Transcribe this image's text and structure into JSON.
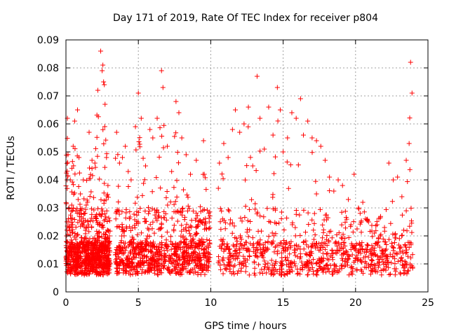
{
  "chart_data": {
    "type": "scatter",
    "title": "Day 171 of 2019, Rate Of TEC Index for receiver p804",
    "xlabel": "GPS time / hours",
    "ylabel": "ROTI / TECUs",
    "xlim": [
      0,
      25
    ],
    "ylim": [
      0,
      0.09
    ],
    "xticks": [
      "0",
      "5",
      "10",
      "15",
      "20",
      "25"
    ],
    "yticks": [
      "0",
      "0.01",
      "0.02",
      "0.03",
      "0.04",
      "0.05",
      "0.06",
      "0.07",
      "0.08",
      "0.09"
    ],
    "grid": true,
    "marker": "+",
    "color": "#ff0000",
    "series": [
      {
        "name": "ROTI",
        "x": [
          0.1,
          0.2,
          0.3,
          0.4,
          0.5,
          0.6,
          0.8,
          0.9,
          1.0,
          1.2,
          1.4,
          1.6,
          1.8,
          2.0,
          2.2,
          2.4,
          2.5,
          2.55,
          2.6,
          2.65,
          2.7,
          2.8,
          2.9,
          3.0,
          3.5,
          3.7,
          3.9,
          4.1,
          4.3,
          4.5,
          4.8,
          5.0,
          5.2,
          5.5,
          5.8,
          6.0,
          6.3,
          6.6,
          6.7,
          7.0,
          7.3,
          7.6,
          7.8,
          8.0,
          8.3,
          8.6,
          9.0,
          9.5,
          9.9,
          10.6,
          10.9,
          11.2,
          11.5,
          11.7,
          12.0,
          12.3,
          12.6,
          12.9,
          13.2,
          13.4,
          13.7,
          14.0,
          14.3,
          14.6,
          14.8,
          15.0,
          15.3,
          15.6,
          15.9,
          16.2,
          16.4,
          16.7,
          17.0,
          17.3,
          17.6,
          17.9,
          18.2,
          18.5,
          18.8,
          19.1,
          19.5,
          19.9,
          20.2,
          20.5,
          20.9,
          21.3,
          21.7,
          22.0,
          22.3,
          22.6,
          22.9,
          23.2,
          23.5,
          23.7,
          23.8,
          23.9
        ],
        "y": [
          0.062,
          0.025,
          0.04,
          0.031,
          0.052,
          0.061,
          0.065,
          0.048,
          0.035,
          0.04,
          0.031,
          0.057,
          0.047,
          0.046,
          0.072,
          0.086,
          0.079,
          0.081,
          0.075,
          0.074,
          0.067,
          0.048,
          0.038,
          0.02,
          0.057,
          0.046,
          0.048,
          0.052,
          0.043,
          0.04,
          0.059,
          0.071,
          0.062,
          0.045,
          0.058,
          0.055,
          0.062,
          0.079,
          0.073,
          0.052,
          0.043,
          0.068,
          0.064,
          0.055,
          0.049,
          0.042,
          0.047,
          0.054,
          0.025,
          0.046,
          0.053,
          0.048,
          0.058,
          0.065,
          0.057,
          0.06,
          0.066,
          0.045,
          0.077,
          0.062,
          0.051,
          0.066,
          0.056,
          0.073,
          0.065,
          0.05,
          0.055,
          0.064,
          0.062,
          0.069,
          0.056,
          0.061,
          0.055,
          0.054,
          0.052,
          0.047,
          0.041,
          0.036,
          0.04,
          0.038,
          0.033,
          0.042,
          0.03,
          0.032,
          0.025,
          0.021,
          0.02,
          0.023,
          0.046,
          0.04,
          0.041,
          0.034,
          0.047,
          0.053,
          0.082,
          0.071
        ]
      }
    ]
  }
}
